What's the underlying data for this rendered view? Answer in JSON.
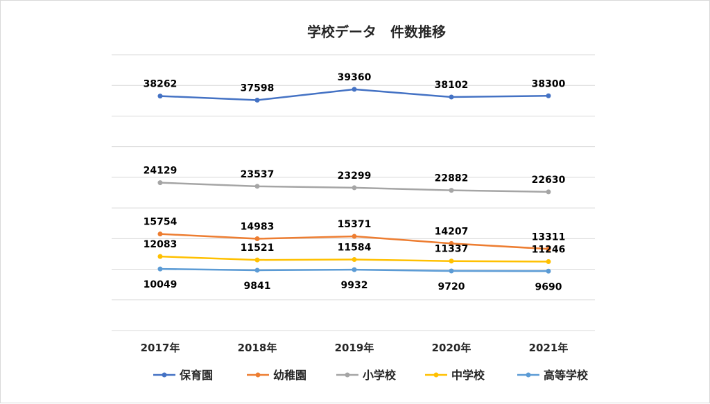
{
  "chart_data": {
    "type": "line",
    "title": "学校データ　件数推移",
    "categories": [
      "2017年",
      "2018年",
      "2019年",
      "2020年",
      "2021年"
    ],
    "ylim": [
      0,
      45000
    ],
    "yticks_shown": false,
    "grid": true,
    "legend_position": "bottom",
    "series": [
      {
        "name": "保育園",
        "color": "#4472C4",
        "values": [
          38262,
          37598,
          39360,
          38102,
          38300
        ],
        "label_pos": "above"
      },
      {
        "name": "幼稚園",
        "color": "#ED7D31",
        "values": [
          15754,
          14983,
          15371,
          14207,
          13311
        ],
        "label_pos": "above"
      },
      {
        "name": "小学校",
        "color": "#A5A5A5",
        "values": [
          24129,
          23537,
          23299,
          22882,
          22630
        ],
        "label_pos": "above"
      },
      {
        "name": "中学校",
        "color": "#FFC000",
        "values": [
          12083,
          11521,
          11584,
          11337,
          11246
        ],
        "label_pos": "above"
      },
      {
        "name": "高等学校",
        "color": "#5B9BD5",
        "values": [
          10049,
          9841,
          9932,
          9720,
          9690
        ],
        "label_pos": "below"
      }
    ]
  }
}
